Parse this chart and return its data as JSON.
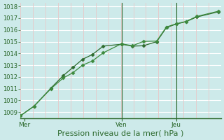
{
  "background_color": "#cdeaea",
  "plot_bg_color": "#cdeaea",
  "grid_color_h": "#ffffff",
  "grid_color_v": "#e8c8c8",
  "line_color1": "#2d6a2d",
  "line_color2": "#3d8a3d",
  "xlabel": "Pression niveau de la mer( hPa )",
  "xlabel_fontsize": 8,
  "xlabel_color": "#2d6a2d",
  "ylim": [
    1008.5,
    1018.3
  ],
  "xlim": [
    0,
    16.5
  ],
  "yticks": [
    1009,
    1010,
    1011,
    1012,
    1013,
    1014,
    1015,
    1016,
    1017,
    1018
  ],
  "ytick_fontsize": 6,
  "xtick_labels": [
    "Mer",
    "Ven",
    "Jeu"
  ],
  "xtick_positions": [
    0.3,
    8.3,
    12.8
  ],
  "vline_positions": [
    8.3,
    12.8
  ],
  "num_hgrid_lines": 10,
  "num_vgrid_lines": 16,
  "series1_x": [
    0,
    1.1,
    2.5,
    3.5,
    4.3,
    5.1,
    5.9,
    6.8,
    8.3,
    9.2,
    10.1,
    11.2,
    12.0,
    12.8,
    13.6,
    14.5,
    16.3
  ],
  "series1_y": [
    1008.7,
    1009.5,
    1011.05,
    1012.1,
    1012.8,
    1013.5,
    1013.9,
    1014.62,
    1014.78,
    1014.62,
    1014.65,
    1015.0,
    1016.2,
    1016.5,
    1016.7,
    1017.1,
    1017.55
  ],
  "series2_x": [
    0,
    1.1,
    2.5,
    3.5,
    4.3,
    5.1,
    5.9,
    6.8,
    8.3,
    9.2,
    10.1,
    11.2,
    12.0,
    12.8,
    13.6,
    14.5,
    16.3
  ],
  "series2_y": [
    1008.7,
    1009.5,
    1011.0,
    1011.9,
    1012.35,
    1013.0,
    1013.35,
    1014.05,
    1014.82,
    1014.65,
    1015.02,
    1015.05,
    1016.25,
    1016.52,
    1016.72,
    1017.15,
    1017.6
  ],
  "marker": "D",
  "marker_size": 2.5,
  "linewidth": 0.9
}
